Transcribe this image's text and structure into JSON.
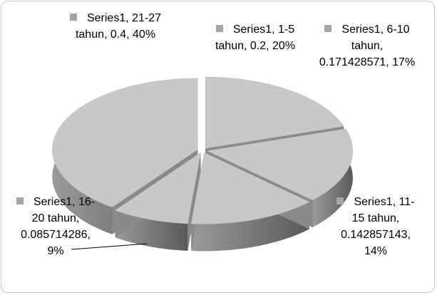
{
  "chart_data": {
    "type": "pie",
    "values": [
      0.2,
      0.171428571,
      0.142857143,
      0.085714286,
      0.4
    ],
    "value_labels": [
      "Series1, 1-5 tahun, 0.2, 20%",
      "Series1, 6-10 tahun, 0.171428571, 17%",
      "Series1, 11-15 tahun, 0.142857143, 14%",
      "Series1, 16-20 tahun, 0.085714286, 9%",
      "Series1, 21-27 tahun, 0.4, 40%"
    ],
    "color": "#c8c8c8"
  }
}
